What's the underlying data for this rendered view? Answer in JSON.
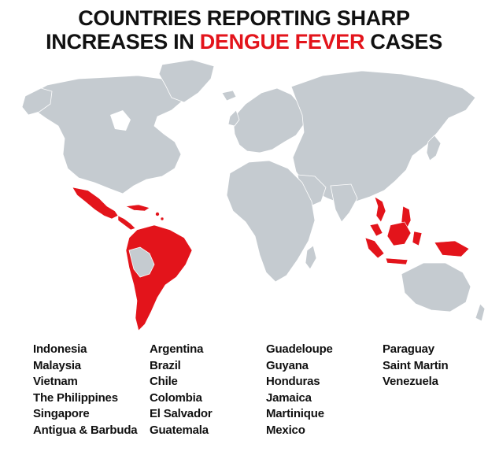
{
  "title": {
    "line1": "COUNTRIES REPORTING SHARP",
    "line2_pre": "INCREASES IN ",
    "line2_highlight": "DENGUE FEVER",
    "line2_post": " CASES"
  },
  "colors": {
    "highlight": "#e3141b",
    "land": "#c5cbd0",
    "text": "#111111"
  },
  "countries": {
    "col1": [
      "Indonesia",
      "Malaysia",
      "Vietnam",
      "The Philippines",
      "Singapore",
      "Antigua & Barbuda"
    ],
    "col2": [
      "Argentina",
      "Brazil",
      "Chile",
      "Colombia",
      "El Salvador",
      "Guatemala"
    ],
    "col3": [
      "Guadeloupe",
      "Guyana",
      "Honduras",
      "Jamaica",
      "Martinique",
      "Mexico"
    ],
    "col4": [
      "Paraguay",
      "Saint Martin",
      "Venezuela"
    ]
  }
}
